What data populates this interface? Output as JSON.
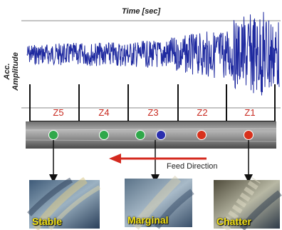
{
  "x_axis_title": "Time [sec]",
  "y_axis_title": "Acc. Amplitude",
  "zones": [
    "Z5",
    "Z4",
    "Z3",
    "Z2",
    "Z1"
  ],
  "markers": [
    {
      "color": "#2fa84a"
    },
    {
      "color": "#2fa84a"
    },
    {
      "color": "#2fa84a"
    },
    {
      "color": "#2a2fae"
    },
    {
      "color": "#d8311c"
    },
    {
      "color": "#d8311c"
    }
  ],
  "feed_direction_label": "Feed Direction",
  "photos": [
    {
      "label": "Stable"
    },
    {
      "label": "Marginal"
    },
    {
      "label": "Chatter"
    }
  ],
  "colors": {
    "signal": "#1f2aa0",
    "zone_text": "#c8281e",
    "feed_arrow": "#d42a1f",
    "photo_label": "#f4e316"
  }
}
